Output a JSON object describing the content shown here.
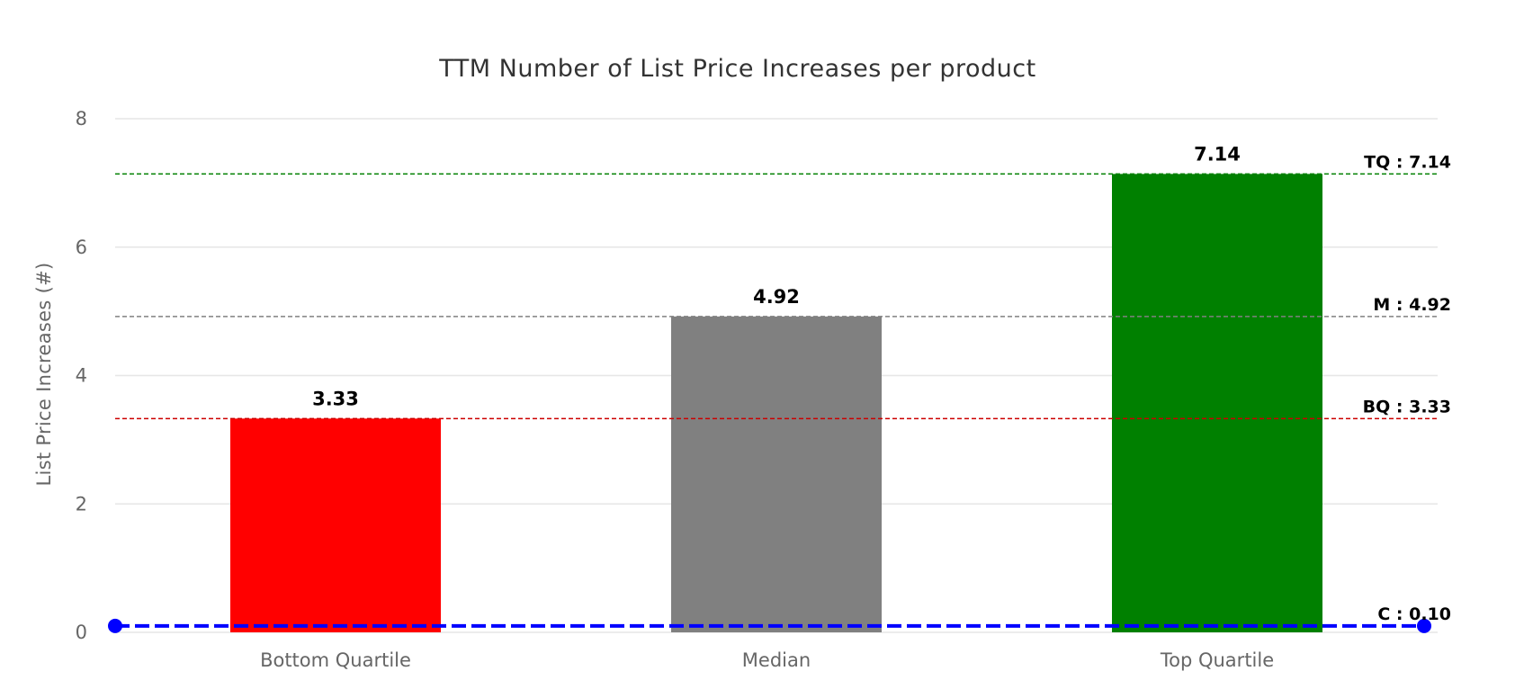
{
  "chart_data": {
    "type": "bar",
    "title": "TTM Number of List Price Increases per product",
    "xlabel": "",
    "ylabel": "List Price Increases (#)",
    "ylim": [
      0,
      8
    ],
    "yticks": [
      0,
      2,
      4,
      6,
      8
    ],
    "ytick_labels": [
      "0",
      "2",
      "4",
      "6",
      "8"
    ],
    "grid": true,
    "categories": [
      "Bottom Quartile",
      "Median",
      "Top Quartile"
    ],
    "values": [
      3.33,
      4.92,
      7.14
    ],
    "value_labels": [
      "3.33",
      "4.92",
      "7.14"
    ],
    "bar_colors": [
      "#ff0000",
      "#808080",
      "#008000"
    ],
    "reference_lines": [
      {
        "name": "TQ",
        "value": 7.14,
        "label": "TQ : 7.14",
        "color": "#008000",
        "style": "dashed"
      },
      {
        "name": "M",
        "value": 4.92,
        "label": "M : 4.92",
        "color": "#808080",
        "style": "dashed"
      },
      {
        "name": "BQ",
        "value": 3.33,
        "label": "BQ : 3.33",
        "color": "#cc0000",
        "style": "dashed"
      },
      {
        "name": "C",
        "value": 0.1,
        "label": "C : 0.10",
        "color": "#0000ff",
        "style": "bold-dashed-with-endpoints"
      }
    ]
  }
}
